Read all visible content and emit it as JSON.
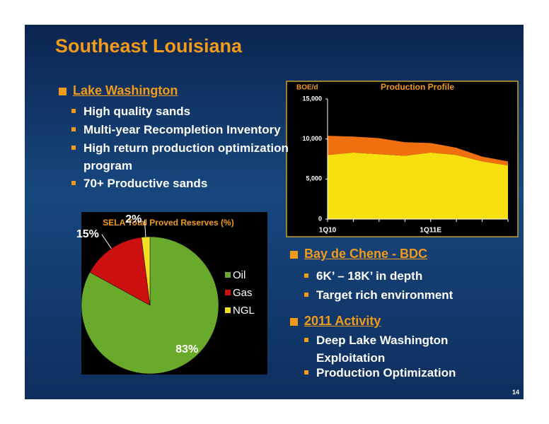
{
  "title": "Southeast Louisiana",
  "page_number": "14",
  "sections": [
    {
      "heading": "Lake Washington",
      "bullets": [
        "High quality sands",
        "Multi-year Recompletion Inventory",
        "High return production optimization program",
        "70+ Productive sands"
      ]
    },
    {
      "heading": "Bay de Chene - BDC",
      "bullets": [
        "6K’ – 18K’ in depth",
        "Target rich environment"
      ]
    },
    {
      "heading": "2011 Activity",
      "bullets": [
        "Deep Lake Washington Exploitation",
        "Production Optimization"
      ]
    }
  ],
  "chart_data": [
    {
      "type": "area",
      "stacked": true,
      "title": "Production Profile",
      "y_label": "BOE/d",
      "categories": [
        "1Q10",
        null,
        null,
        null,
        "1Q11E",
        null,
        null,
        null
      ],
      "series": [
        {
          "color": "#f8e010",
          "values": [
            8000,
            8300,
            8100,
            7900,
            8300,
            8000,
            7200,
            6700
          ]
        },
        {
          "color": "#f07010",
          "values": [
            2400,
            2000,
            2000,
            1700,
            1200,
            900,
            600,
            500
          ]
        }
      ],
      "ylim": [
        0,
        15000
      ],
      "yticks": [
        0,
        {
          "value": 5000,
          "label": "5,000"
        },
        {
          "value": 10000,
          "label": "10,000"
        },
        {
          "value": 15000,
          "label": "15,000"
        }
      ]
    },
    {
      "type": "pie",
      "title": "SELA Total Proved Reserves (%)",
      "categories": [
        "Oil",
        "Gas",
        "NGL"
      ],
      "values": [
        83,
        15,
        2
      ],
      "value_labels": [
        "83%",
        "15%",
        "2%"
      ],
      "colors": [
        "#6aaa2a",
        "#cc1010",
        "#f0e020"
      ]
    }
  ]
}
